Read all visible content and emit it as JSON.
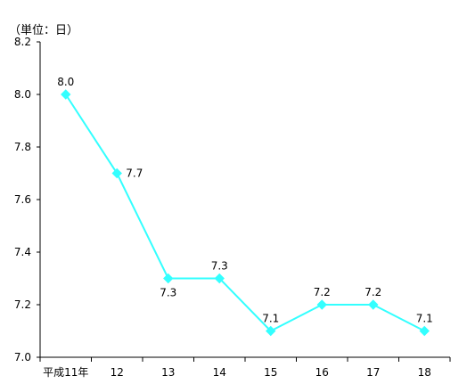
{
  "chart_data": {
    "type": "line",
    "unit_label": "（単位：日）",
    "categories": [
      "平成11年",
      "12",
      "13",
      "14",
      "15",
      "16",
      "17",
      "18"
    ],
    "series": [
      {
        "values": [
          8.0,
          7.7,
          7.3,
          7.3,
          7.1,
          7.2,
          7.2,
          7.1
        ],
        "data_labels": [
          "8.0",
          "7.7",
          "7.3",
          "7.3",
          "7.1",
          "7.2",
          "7.2",
          "7.1"
        ],
        "color": "#33ffff"
      }
    ],
    "yticks": [
      "7.0",
      "7.2",
      "7.4",
      "7.6",
      "7.8",
      "8.0",
      "8.2"
    ],
    "ylim": [
      7.0,
      8.2
    ],
    "grid": false,
    "legend": "none",
    "marker": "diamond"
  }
}
